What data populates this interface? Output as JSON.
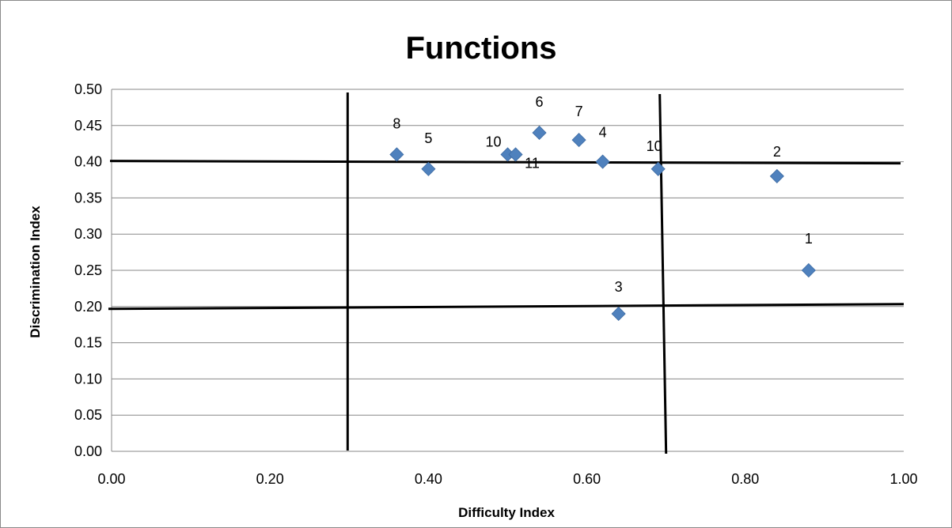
{
  "chart_data": {
    "type": "scatter",
    "title": "Functions",
    "xlabel": "Difficulty Index",
    "ylabel": "Discrimination Index",
    "xlim": [
      0.0,
      1.0
    ],
    "ylim": [
      0.0,
      0.5
    ],
    "x_tick_labels": [
      "0.00",
      "0.20",
      "0.40",
      "0.60",
      "0.80",
      "1.00"
    ],
    "y_tick_labels": [
      "0.00",
      "0.05",
      "0.10",
      "0.15",
      "0.20",
      "0.25",
      "0.30",
      "0.35",
      "0.40",
      "0.45",
      "0.50"
    ],
    "grid": "horizontal",
    "legend": "none",
    "marker": "diamond",
    "marker_color": "#4f81bd",
    "points": [
      {
        "label": "1",
        "x": 0.88,
        "y": 0.25
      },
      {
        "label": "2",
        "x": 0.84,
        "y": 0.38
      },
      {
        "label": "3",
        "x": 0.64,
        "y": 0.19
      },
      {
        "label": "4",
        "x": 0.62,
        "y": 0.4
      },
      {
        "label": "5",
        "x": 0.4,
        "y": 0.39
      },
      {
        "label": "6",
        "x": 0.54,
        "y": 0.44
      },
      {
        "label": "7",
        "x": 0.59,
        "y": 0.43
      },
      {
        "label": "8",
        "x": 0.36,
        "y": 0.41
      },
      {
        "label": "10",
        "x": 0.5,
        "y": 0.41
      },
      {
        "label": "11",
        "x": 0.51,
        "y": 0.41
      },
      {
        "label": "10",
        "x": 0.69,
        "y": 0.39
      }
    ],
    "reference_lines": [
      {
        "orientation": "horizontal",
        "value": 0.4
      },
      {
        "orientation": "horizontal",
        "value": 0.2
      },
      {
        "orientation": "vertical",
        "value": 0.3
      },
      {
        "orientation": "vertical",
        "value": 0.7
      }
    ]
  }
}
